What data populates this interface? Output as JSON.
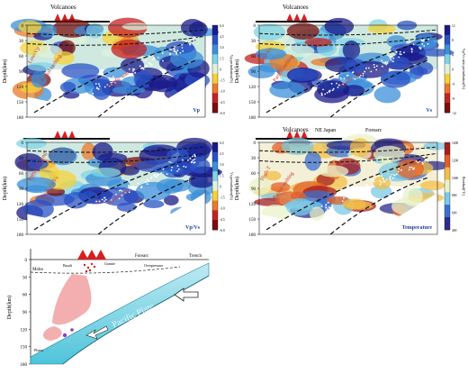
{
  "panels": [
    {
      "id": "vp",
      "header": "Volcanoes",
      "subheader_left": "",
      "subheader_right": "",
      "corner_label": "Vp",
      "colorbar_label": "Vp perturbation(%)",
      "colorbar_ticks": [
        "-6.0",
        "-4.5",
        "-3.0",
        "-1.5",
        "0",
        "1.5",
        "3.0",
        "4.5",
        "6.0"
      ],
      "annotations": [
        "Low-Vp",
        "Partial melting",
        "Pacific slab"
      ]
    },
    {
      "id": "vs",
      "header": "Volcanoes",
      "subheader_left": "",
      "subheader_right": "",
      "corner_label": "Vs",
      "colorbar_label": "Vp/Vs ratio perturbation(%)",
      "colorbar_ticks": [
        "-12",
        "-8",
        "-4",
        "0",
        "4",
        "8",
        "12"
      ],
      "annotations": [
        "Low-Vs",
        "Partial melting",
        "Pacific slab"
      ]
    },
    {
      "id": "vpvs",
      "header": "",
      "subheader_left": "",
      "subheader_right": "",
      "corner_label": "Vp/Vs",
      "colorbar_label": "Vs perturbation(%)",
      "colorbar_ticks": [
        "-6.0",
        "-4.5",
        "-3.0",
        "-1.5",
        "0",
        "1.5",
        "3.0",
        "4.5",
        "6.0"
      ],
      "annotations": [
        "Partial melting",
        "High-Vp/Vs",
        "Pacific slab"
      ]
    },
    {
      "id": "temp",
      "header": "Volcanoes",
      "subheader_left": "NE Japan",
      "subheader_right": "Forearc",
      "corner_label": "Temperature",
      "colorbar_label": "Residual(°C)",
      "colorbar_ticks": [
        "400",
        "600",
        "800",
        "1000",
        "1200",
        "1400"
      ],
      "annotations": [
        "High-T",
        "Partial melting"
      ]
    }
  ],
  "axes": {
    "ylabel": "Depth(km)",
    "yticks": [
      "0",
      "30",
      "60",
      "90",
      "120",
      "150",
      "180"
    ]
  },
  "schematic": {
    "labels": {
      "forearc": "Forearc",
      "trench": "Trench",
      "moho": "Moho",
      "basalt": "Basalt",
      "granite": "Granite",
      "overpressure": "Overpressure",
      "pacific_plate": "Pacific Plate",
      "plume": "Plume"
    }
  },
  "colors": {
    "volcano": "#d42020",
    "slab": "#78d4e6",
    "melt": "#f0a0a0",
    "panel_bg": "#ffffff"
  }
}
